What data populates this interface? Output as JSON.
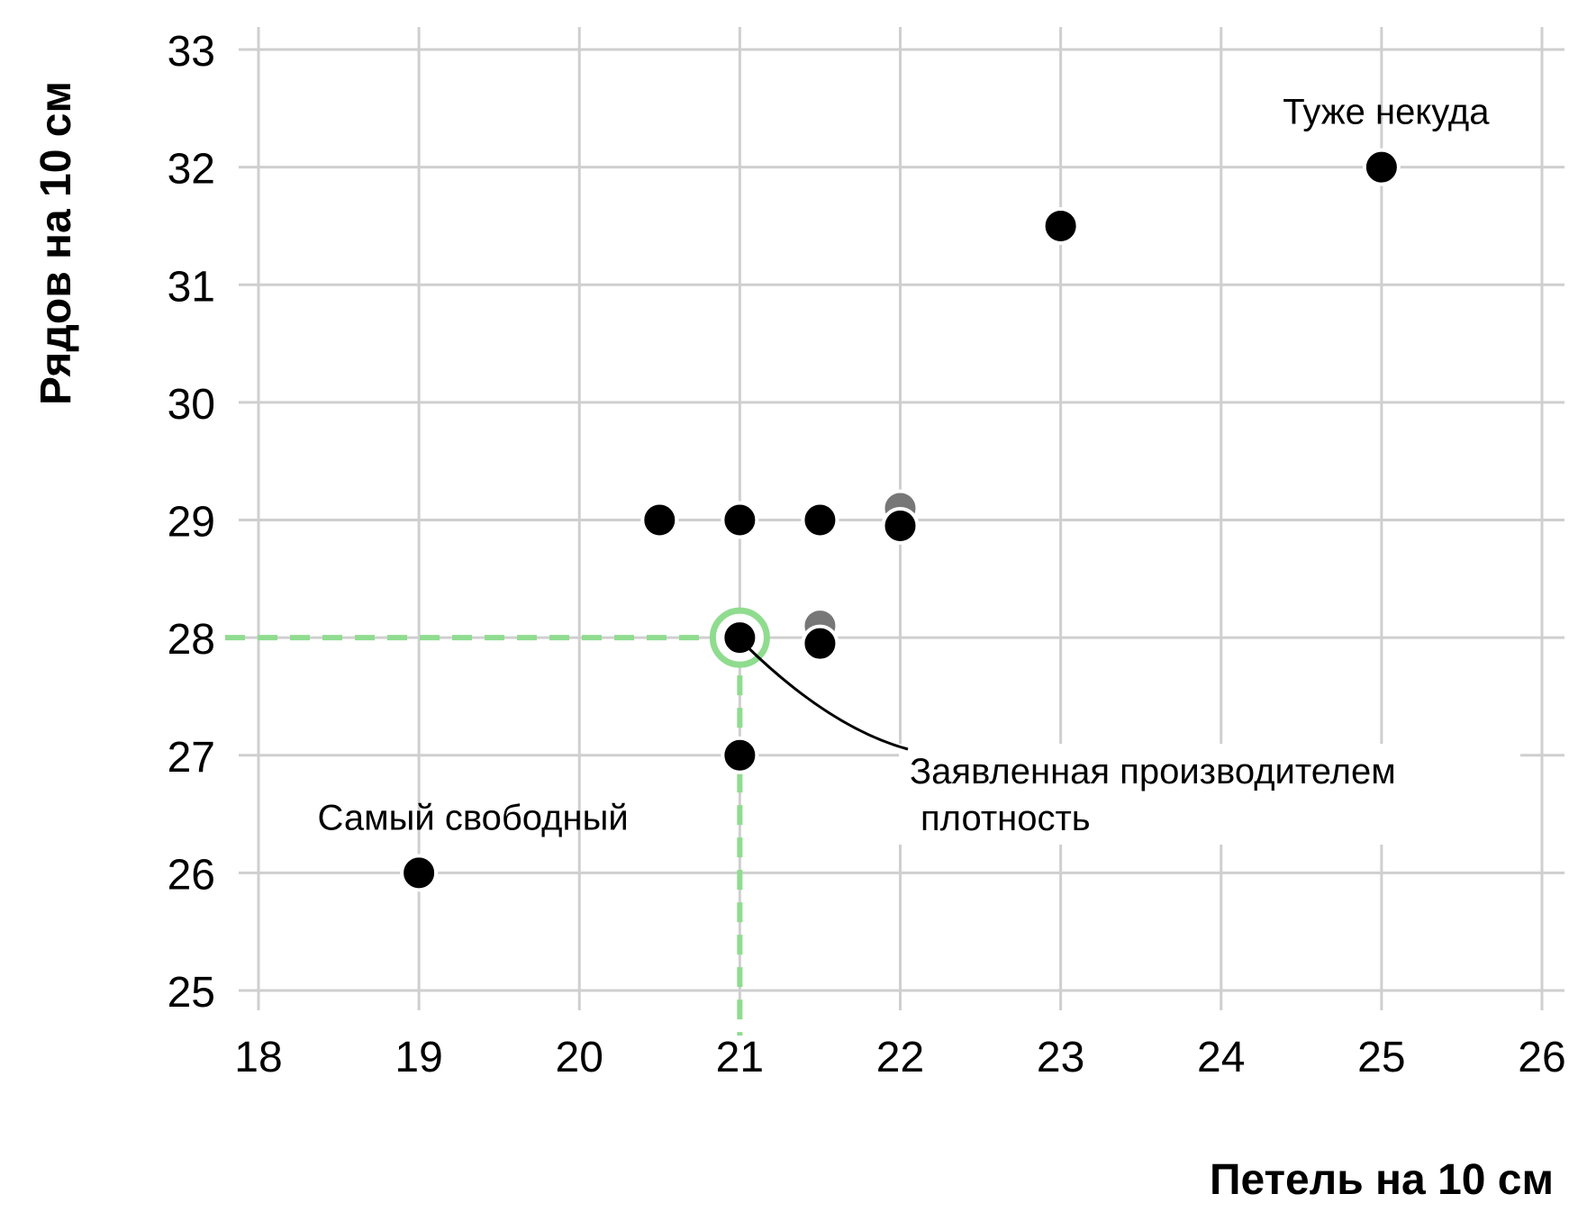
{
  "chart_data": {
    "type": "scatter",
    "title": "",
    "xlabel": "Петель на 10 см",
    "ylabel": "Рядов на 10 см",
    "xlim": [
      18,
      26
    ],
    "ylim": [
      25,
      33
    ],
    "x_ticks": [
      18,
      19,
      20,
      21,
      22,
      23,
      24,
      25,
      26
    ],
    "y_ticks": [
      25,
      26,
      27,
      28,
      29,
      30,
      31,
      32,
      33
    ],
    "grid": true,
    "series": [
      {
        "name": "primary",
        "color": "#000000",
        "points": [
          {
            "x": 19,
            "y": 26
          },
          {
            "x": 20.5,
            "y": 29
          },
          {
            "x": 21,
            "y": 29
          },
          {
            "x": 21.5,
            "y": 29
          },
          {
            "x": 22,
            "y": 28.95
          },
          {
            "x": 21,
            "y": 28
          },
          {
            "x": 21.5,
            "y": 27.95
          },
          {
            "x": 21,
            "y": 27
          },
          {
            "x": 23,
            "y": 31.5
          },
          {
            "x": 25,
            "y": 32
          }
        ]
      },
      {
        "name": "secondary",
        "color": "#777777",
        "points": [
          {
            "x": 22,
            "y": 29.1
          },
          {
            "x": 21.5,
            "y": 28.1
          }
        ]
      }
    ],
    "highlight": {
      "x": 21,
      "y": 28,
      "color": "#8fdc8f"
    },
    "annotations": [
      {
        "text": "Туже некуда",
        "x": 25,
        "y": 32
      },
      {
        "text": "Самый свободный",
        "x": 19,
        "y": 26
      },
      {
        "lines": [
          "Заявленная производителем",
          "плотность"
        ],
        "x": 21,
        "y": 28
      }
    ]
  }
}
